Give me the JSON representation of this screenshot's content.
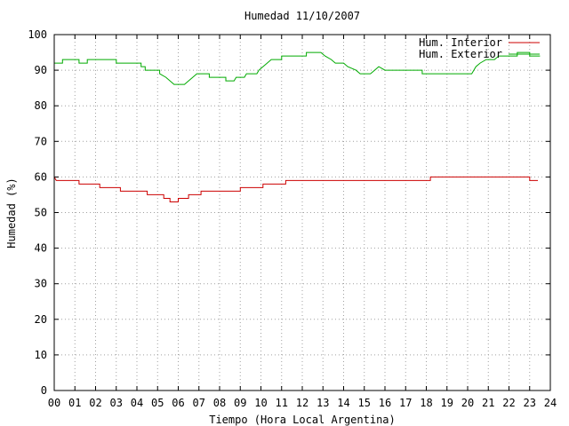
{
  "chart_data": {
    "type": "line",
    "title": "Humedad 11/10/2007",
    "xlabel": "Tiempo (Hora Local Argentina)",
    "ylabel": "Humedad (%)",
    "xlim": [
      0,
      24
    ],
    "ylim": [
      0,
      100
    ],
    "x_ticks": [
      "00",
      "01",
      "02",
      "03",
      "04",
      "05",
      "06",
      "07",
      "08",
      "09",
      "10",
      "11",
      "12",
      "13",
      "14",
      "15",
      "16",
      "17",
      "18",
      "19",
      "20",
      "21",
      "22",
      "23",
      "24"
    ],
    "y_ticks": [
      "0",
      "10",
      "20",
      "30",
      "40",
      "50",
      "60",
      "70",
      "80",
      "90",
      "100"
    ],
    "grid": true,
    "legend_position": "top-right",
    "series": [
      {
        "name": "Hum. Interior",
        "color": "#cc0000",
        "points": [
          [
            0.0,
            60
          ],
          [
            0.1,
            59
          ],
          [
            1.2,
            59
          ],
          [
            1.2,
            58
          ],
          [
            2.2,
            58
          ],
          [
            2.2,
            57
          ],
          [
            3.2,
            57
          ],
          [
            3.2,
            56
          ],
          [
            4.5,
            56
          ],
          [
            4.5,
            55
          ],
          [
            5.3,
            55
          ],
          [
            5.3,
            54
          ],
          [
            5.6,
            54
          ],
          [
            5.6,
            53
          ],
          [
            6.0,
            53
          ],
          [
            6.0,
            54
          ],
          [
            6.5,
            54
          ],
          [
            6.5,
            55
          ],
          [
            7.1,
            55
          ],
          [
            7.1,
            56
          ],
          [
            9.0,
            56
          ],
          [
            9.0,
            57
          ],
          [
            10.1,
            57
          ],
          [
            10.1,
            58
          ],
          [
            11.2,
            58
          ],
          [
            11.2,
            59
          ],
          [
            18.2,
            59
          ],
          [
            18.2,
            60
          ],
          [
            23.0,
            60
          ],
          [
            23.0,
            59
          ],
          [
            23.4,
            59
          ]
        ]
      },
      {
        "name": "Hum. Exterior",
        "color": "#00aa00",
        "points": [
          [
            0.0,
            92
          ],
          [
            0.4,
            92
          ],
          [
            0.4,
            93
          ],
          [
            1.2,
            93
          ],
          [
            1.2,
            92
          ],
          [
            1.6,
            92
          ],
          [
            1.6,
            93
          ],
          [
            3.0,
            93
          ],
          [
            3.0,
            92
          ],
          [
            4.2,
            92
          ],
          [
            4.2,
            91
          ],
          [
            4.4,
            91
          ],
          [
            4.4,
            90
          ],
          [
            5.1,
            90
          ],
          [
            5.1,
            89
          ],
          [
            5.4,
            88
          ],
          [
            5.6,
            87
          ],
          [
            5.8,
            86
          ],
          [
            6.3,
            86
          ],
          [
            6.5,
            87
          ],
          [
            6.7,
            88
          ],
          [
            6.9,
            89
          ],
          [
            7.5,
            89
          ],
          [
            7.5,
            88
          ],
          [
            8.3,
            88
          ],
          [
            8.3,
            87
          ],
          [
            8.7,
            87
          ],
          [
            8.8,
            88
          ],
          [
            9.2,
            88
          ],
          [
            9.3,
            89
          ],
          [
            9.8,
            89
          ],
          [
            9.9,
            90
          ],
          [
            10.1,
            91
          ],
          [
            10.3,
            92
          ],
          [
            10.5,
            93
          ],
          [
            11.0,
            93
          ],
          [
            11.0,
            94
          ],
          [
            12.2,
            94
          ],
          [
            12.2,
            95
          ],
          [
            12.9,
            95
          ],
          [
            13.1,
            94
          ],
          [
            13.4,
            93
          ],
          [
            13.6,
            92
          ],
          [
            14.0,
            92
          ],
          [
            14.2,
            91
          ],
          [
            14.6,
            90
          ],
          [
            14.8,
            89
          ],
          [
            15.3,
            89
          ],
          [
            15.5,
            90
          ],
          [
            15.7,
            91
          ],
          [
            16.0,
            90
          ],
          [
            17.8,
            90
          ],
          [
            17.8,
            89
          ],
          [
            20.2,
            89
          ],
          [
            20.4,
            91
          ],
          [
            20.6,
            92
          ],
          [
            20.9,
            93
          ],
          [
            21.3,
            93
          ],
          [
            21.5,
            94
          ],
          [
            22.4,
            94
          ],
          [
            22.4,
            95
          ],
          [
            23.0,
            95
          ],
          [
            23.0,
            94
          ],
          [
            23.5,
            94
          ]
        ]
      }
    ]
  }
}
